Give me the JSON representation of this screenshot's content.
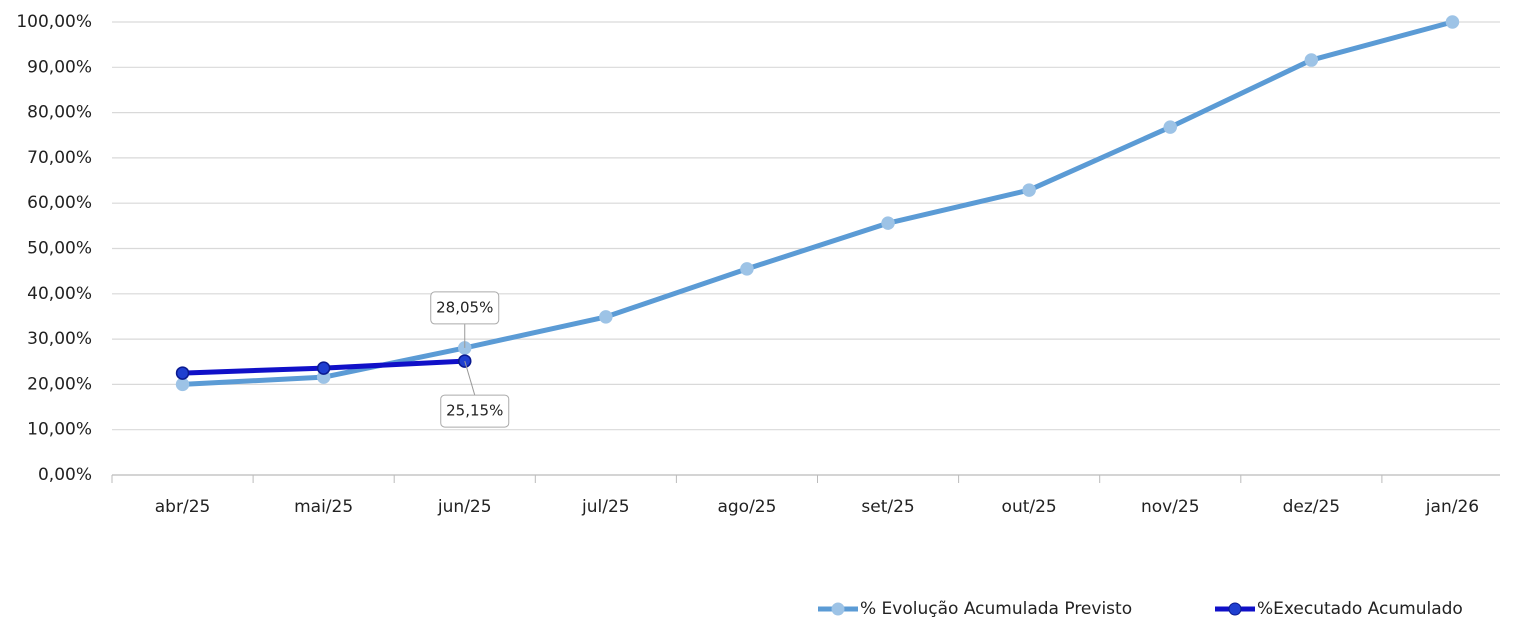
{
  "chart_data": {
    "type": "line",
    "categories": [
      "abr/25",
      "mai/25",
      "jun/25",
      "jul/25",
      "ago/25",
      "set/25",
      "out/25",
      "nov/25",
      "dez/25",
      "jan/26"
    ],
    "series": [
      {
        "name": "% Evolução Acumulada Previsto",
        "color": "#5b9bd5",
        "marker_color": "#9dc3e6",
        "values": [
          20,
          21.6,
          28.05,
          34.9,
          45.5,
          55.6,
          62.9,
          76.8,
          91.6,
          100
        ],
        "value_labels": [
          null,
          null,
          "28,05%",
          null,
          null,
          null,
          null,
          null,
          null,
          null
        ]
      },
      {
        "name": "%Executado Acumulado",
        "color": "#1010c8",
        "marker_color": "#1f3fd0",
        "values": [
          22.5,
          23.6,
          25.15,
          null,
          null,
          null,
          null,
          null,
          null,
          null
        ],
        "value_labels": [
          null,
          null,
          "25,15%",
          null,
          null,
          null,
          null,
          null,
          null,
          null
        ]
      }
    ],
    "ylim": [
      0,
      100
    ],
    "yticks": [
      {
        "value": 0,
        "label": "0,00%"
      },
      {
        "value": 10,
        "label": "10,00%"
      },
      {
        "value": 20,
        "label": "20,00%"
      },
      {
        "value": 30,
        "label": "30,00%"
      },
      {
        "value": 40,
        "label": "40,00%"
      },
      {
        "value": 50,
        "label": "50,00%"
      },
      {
        "value": 60,
        "label": "60,00%"
      },
      {
        "value": 70,
        "label": "70,00%"
      },
      {
        "value": 80,
        "label": "80,00%"
      },
      {
        "value": 90,
        "label": "90,00%"
      },
      {
        "value": 100,
        "label": "100,00%"
      }
    ],
    "grid": true,
    "legend": "bottom-right"
  }
}
